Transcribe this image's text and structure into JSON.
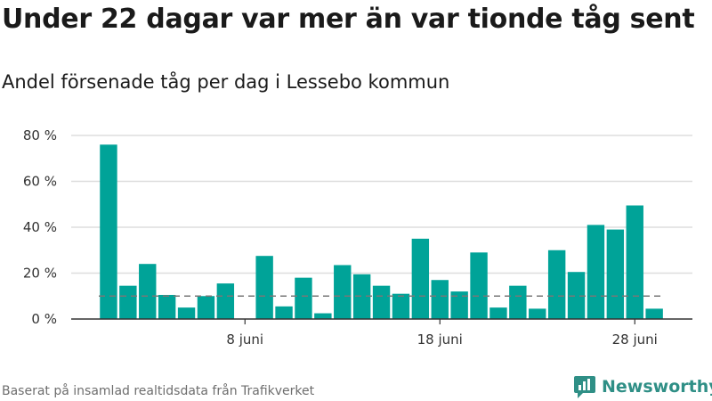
{
  "title": "Under 22 dagar var mer än var tionde tåg sent",
  "subtitle": "Andel försenade tåg per dag i Lessebo kommun",
  "source": "Baserat på insamlad realtidsdata från Trafikverket",
  "brand": {
    "name": "Newsworthy",
    "color": "#2f8f86"
  },
  "colors": {
    "bar": "#00a398",
    "grid": "#dddddd",
    "axis": "#333333",
    "threshold": "#777777"
  },
  "chart_data": {
    "type": "bar",
    "title": "Under 22 dagar var mer än var tionde tåg sent",
    "subtitle": "Andel försenade tåg per dag i Lessebo kommun",
    "x": [
      "1 juni",
      "2 juni",
      "3 juni",
      "4 juni",
      "5 juni",
      "6 juni",
      "7 juni",
      "8 juni",
      "9 juni",
      "10 juni",
      "11 juni",
      "12 juni",
      "13 juni",
      "14 juni",
      "15 juni",
      "16 juni",
      "17 juni",
      "18 juni",
      "19 juni",
      "20 juni",
      "21 juni",
      "22 juni",
      "23 juni",
      "24 juni",
      "25 juni",
      "26 juni",
      "27 juni",
      "28 juni",
      "29 juni"
    ],
    "values": [
      76,
      14.5,
      24,
      10.5,
      5,
      10,
      15.5,
      0,
      27.5,
      5.5,
      18,
      2.5,
      23.5,
      19.5,
      14.5,
      11,
      35,
      17,
      12,
      29,
      5,
      14.5,
      4.5,
      30,
      20.5,
      41,
      39,
      49.5,
      4.5
    ],
    "ylim": [
      0,
      80
    ],
    "yticks": [
      0,
      20,
      40,
      60,
      80
    ],
    "ytick_labels": [
      "0 %",
      "20 %",
      "40 %",
      "60 %",
      "80 %"
    ],
    "xticks": [
      {
        "index": 7,
        "label": "8 juni"
      },
      {
        "index": 17,
        "label": "18 juni"
      },
      {
        "index": 27,
        "label": "28 juni"
      }
    ],
    "reference_line": 10,
    "grid": true,
    "legend": false
  }
}
